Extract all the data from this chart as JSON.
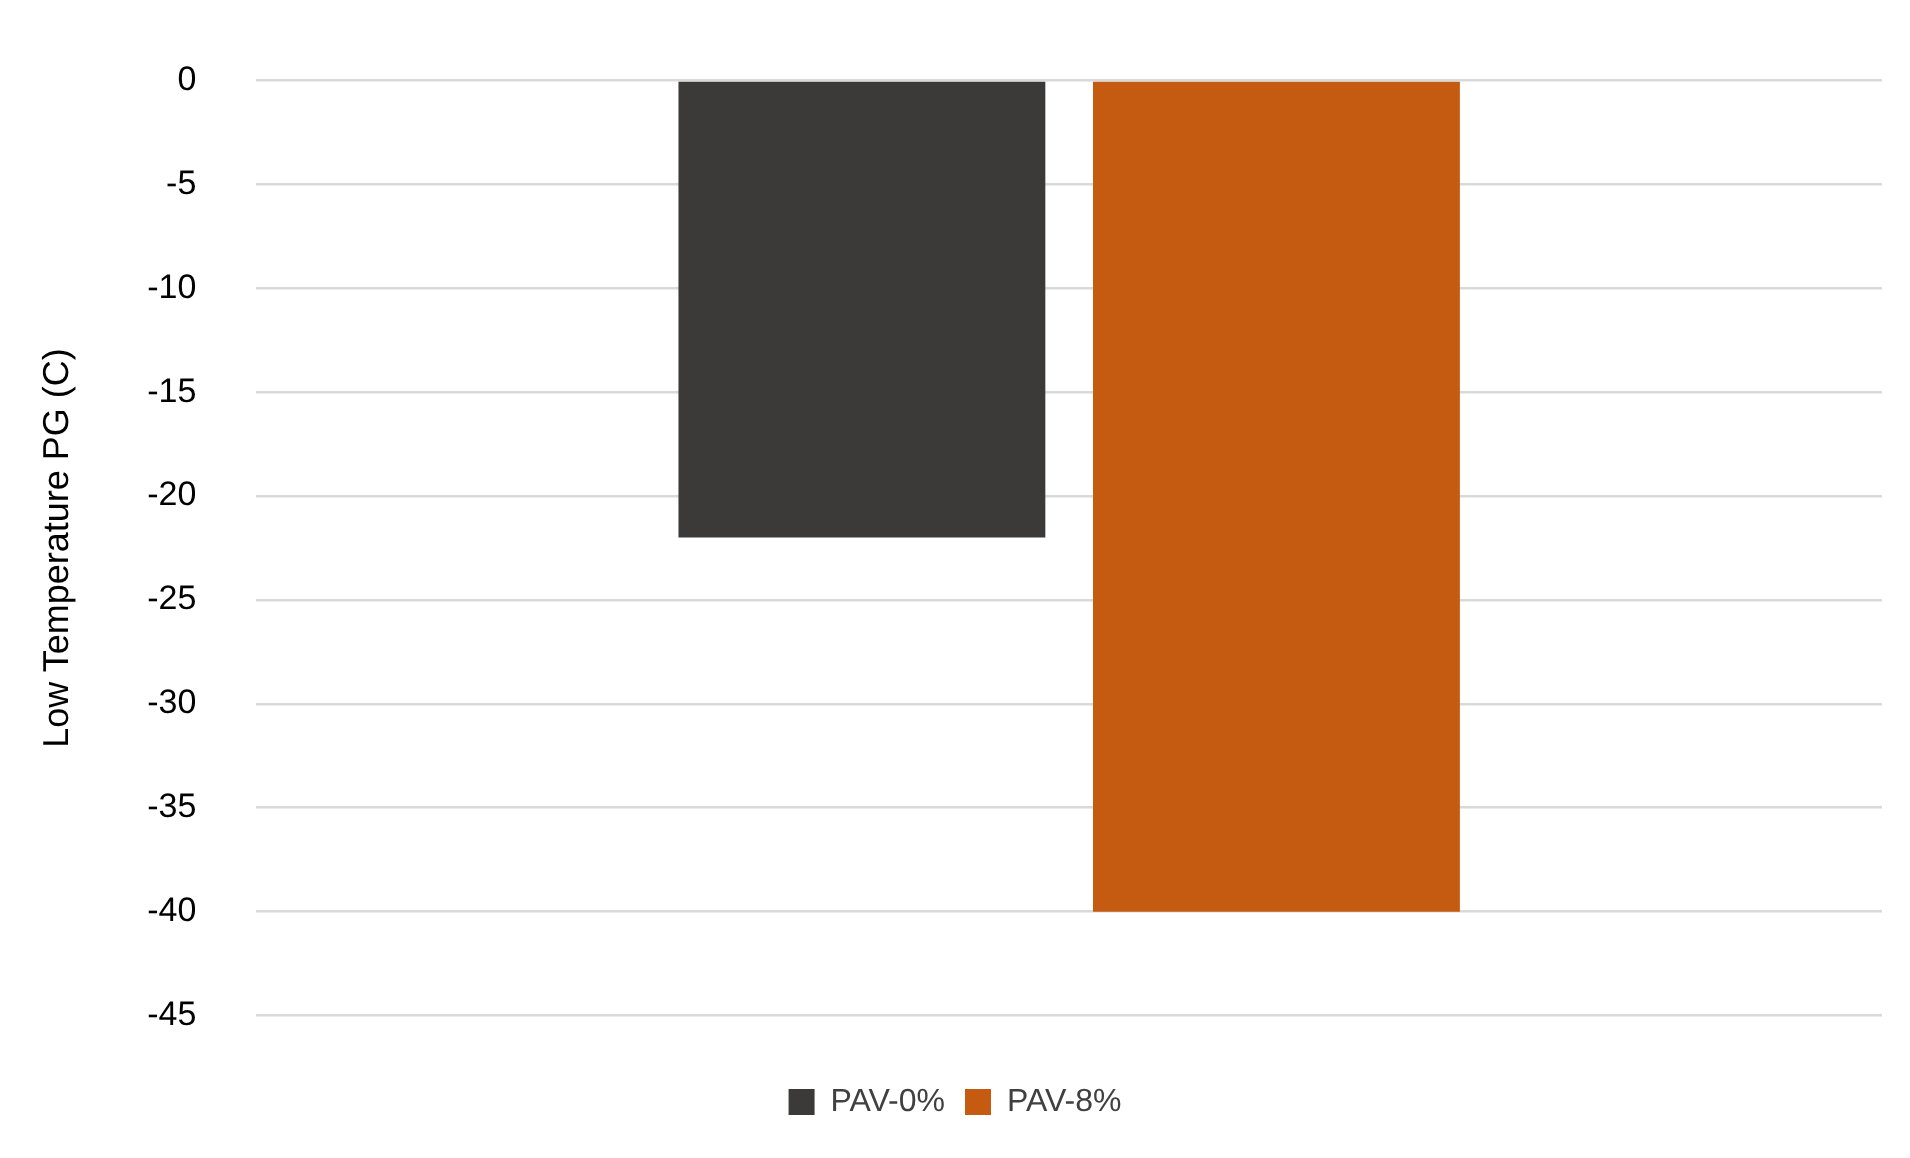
{
  "chart_data": {
    "type": "bar",
    "ylabel": "Low Temperature PG (C)",
    "categories": [
      null
    ],
    "series": [
      {
        "name": "PAV-0%",
        "color": "#3b3a38",
        "values": [
          -22
        ]
      },
      {
        "name": "PAV-8%",
        "color": "#c55a11",
        "values": [
          -40
        ]
      }
    ],
    "ylim": [
      -45,
      0
    ],
    "yticks": [
      -45,
      -40,
      -35,
      -30,
      -25,
      -20,
      -15,
      -10,
      -5,
      0
    ],
    "grid": "y",
    "legend": "bottom"
  }
}
